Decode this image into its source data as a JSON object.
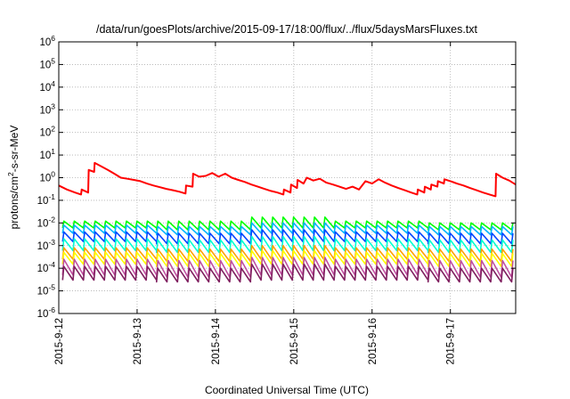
{
  "chart_data": {
    "type": "line",
    "title": "/data/run/goesPlots/archive/2015-09-17/18:00/flux/../flux/5daysMarsFluxes.txt",
    "xlabel": "Coordinated Universal Time (UTC)",
    "ylabel_parts": [
      "protons/cm",
      "2",
      "-s-sr-MeV"
    ],
    "y_scale": "log",
    "ylim": [
      1e-06,
      1000000.0
    ],
    "xlim": [
      "2015-09-12",
      "2015-09-17 20:00"
    ],
    "grid": true,
    "legend": "none",
    "x_tick_labels": [
      "2015-9-12",
      "2015-9-13",
      "2015-9-14",
      "2015-9-15",
      "2015-9-16",
      "2015-9-17"
    ],
    "y_tick_labels": [
      {
        "base": "10",
        "exp": "-6"
      },
      {
        "base": "10",
        "exp": "-5"
      },
      {
        "base": "10",
        "exp": "-4"
      },
      {
        "base": "10",
        "exp": "-3"
      },
      {
        "base": "10",
        "exp": "-2"
      },
      {
        "base": "10",
        "exp": "-1"
      },
      {
        "base": "10",
        "exp": "0"
      },
      {
        "base": "10",
        "exp": "1"
      },
      {
        "base": "10",
        "exp": "2"
      },
      {
        "base": "10",
        "exp": "3"
      },
      {
        "base": "10",
        "exp": "4"
      },
      {
        "base": "10",
        "exp": "5"
      },
      {
        "base": "10",
        "exp": "6"
      }
    ],
    "series": [
      {
        "color": "#ff0000",
        "style": "step-decay",
        "points": [
          [
            "2015-09-12 00:00",
            0.45
          ],
          [
            "2015-09-12 02:30",
            0.3
          ],
          [
            "2015-09-12 05:00",
            0.22
          ],
          [
            "2015-09-12 06:50",
            0.18
          ],
          [
            "2015-09-12 07:00",
            0.3
          ],
          [
            "2015-09-12 09:00",
            0.22
          ],
          [
            "2015-09-12 09:10",
            2.2
          ],
          [
            "2015-09-12 10:50",
            1.8
          ],
          [
            "2015-09-12 11:00",
            4.5
          ],
          [
            "2015-09-12 13:00",
            3.2
          ],
          [
            "2015-09-12 15:00",
            2.2
          ],
          [
            "2015-09-12 17:00",
            1.5
          ],
          [
            "2015-09-12 19:00",
            1.0
          ],
          [
            "2015-09-12 21:00",
            0.9
          ],
          [
            "2015-09-12 23:00",
            0.8
          ],
          [
            "2015-09-13 01:00",
            0.7
          ],
          [
            "2015-09-13 03:00",
            0.55
          ],
          [
            "2015-09-13 05:00",
            0.45
          ],
          [
            "2015-09-13 07:00",
            0.38
          ],
          [
            "2015-09-13 09:00",
            0.32
          ],
          [
            "2015-09-13 11:00",
            0.28
          ],
          [
            "2015-09-13 13:00",
            0.24
          ],
          [
            "2015-09-13 14:50",
            0.2
          ],
          [
            "2015-09-13 15:00",
            0.45
          ],
          [
            "2015-09-13 17:00",
            0.4
          ],
          [
            "2015-09-13 17:10",
            1.5
          ],
          [
            "2015-09-13 19:00",
            1.1
          ],
          [
            "2015-09-13 21:00",
            1.2
          ],
          [
            "2015-09-13 23:00",
            1.6
          ],
          [
            "2015-09-14 01:00",
            1.1
          ],
          [
            "2015-09-14 03:00",
            1.5
          ],
          [
            "2015-09-14 05:00",
            1.0
          ],
          [
            "2015-09-14 07:00",
            0.8
          ],
          [
            "2015-09-14 09:00",
            0.65
          ],
          [
            "2015-09-14 11:00",
            0.5
          ],
          [
            "2015-09-14 13:00",
            0.4
          ],
          [
            "2015-09-14 15:00",
            0.32
          ],
          [
            "2015-09-14 17:00",
            0.26
          ],
          [
            "2015-09-14 19:00",
            0.22
          ],
          [
            "2015-09-14 20:50",
            0.18
          ],
          [
            "2015-09-14 21:00",
            0.3
          ],
          [
            "2015-09-14 23:00",
            0.22
          ],
          [
            "2015-09-14 23:10",
            0.5
          ],
          [
            "2015-09-15 01:00",
            0.35
          ],
          [
            "2015-09-15 01:10",
            0.8
          ],
          [
            "2015-09-15 03:00",
            0.55
          ],
          [
            "2015-09-15 04:00",
            1.0
          ],
          [
            "2015-09-15 06:00",
            0.75
          ],
          [
            "2015-09-15 08:00",
            0.9
          ],
          [
            "2015-09-15 10:00",
            0.6
          ],
          [
            "2015-09-15 12:00",
            0.5
          ],
          [
            "2015-09-15 14:00",
            0.4
          ],
          [
            "2015-09-15 16:00",
            0.32
          ],
          [
            "2015-09-15 18:00",
            0.4
          ],
          [
            "2015-09-15 20:00",
            0.3
          ],
          [
            "2015-09-15 22:00",
            0.7
          ],
          [
            "2015-09-16 00:00",
            0.55
          ],
          [
            "2015-09-16 02:00",
            0.85
          ],
          [
            "2015-09-16 04:00",
            0.6
          ],
          [
            "2015-09-16 06:00",
            0.45
          ],
          [
            "2015-09-16 08:00",
            0.35
          ],
          [
            "2015-09-16 10:00",
            0.28
          ],
          [
            "2015-09-16 12:00",
            0.22
          ],
          [
            "2015-09-16 13:50",
            0.18
          ],
          [
            "2015-09-16 14:00",
            0.3
          ],
          [
            "2015-09-16 16:00",
            0.22
          ],
          [
            "2015-09-16 16:10",
            0.4
          ],
          [
            "2015-09-16 18:00",
            0.3
          ],
          [
            "2015-09-16 18:10",
            0.5
          ],
          [
            "2015-09-16 20:00",
            0.4
          ],
          [
            "2015-09-16 20:10",
            0.7
          ],
          [
            "2015-09-16 22:00",
            0.55
          ],
          [
            "2015-09-16 22:10",
            0.85
          ],
          [
            "2015-09-17 00:00",
            0.7
          ],
          [
            "2015-09-17 02:00",
            0.55
          ],
          [
            "2015-09-17 04:00",
            0.45
          ],
          [
            "2015-09-17 06:00",
            0.35
          ],
          [
            "2015-09-17 08:00",
            0.28
          ],
          [
            "2015-09-17 10:00",
            0.22
          ],
          [
            "2015-09-17 12:00",
            0.18
          ],
          [
            "2015-09-17 13:50",
            0.15
          ],
          [
            "2015-09-17 14:00",
            1.5
          ],
          [
            "2015-09-17 16:00",
            1.0
          ],
          [
            "2015-09-17 18:00",
            0.75
          ],
          [
            "2015-09-17 20:00",
            0.5
          ]
        ]
      },
      {
        "color": "#00ff00",
        "style": "sawtooth",
        "start": "2015-09-12 01:10",
        "period_hours": 3.2,
        "drift": "2015-09-14 20:00",
        "peaks": [
          0.012,
          0.012,
          0.018,
          0.012,
          0.01
        ],
        "troughs": [
          0.006,
          0.005,
          0.006,
          0.006,
          0.005
        ]
      },
      {
        "color": "#00b4ff",
        "style": "sawtooth",
        "start": "2015-09-12 01:10",
        "period_hours": 3.2,
        "peaks": [
          0.008,
          0.007,
          0.01,
          0.008,
          0.007
        ],
        "troughs": [
          0.0035,
          0.003,
          0.0035,
          0.0035,
          0.003
        ]
      },
      {
        "color": "#0046ff",
        "style": "sawtooth",
        "start": "2015-09-12 01:10",
        "period_hours": 3.2,
        "peaks": [
          0.004,
          0.0035,
          0.005,
          0.004,
          0.0035
        ],
        "troughs": [
          0.0015,
          0.0012,
          0.0015,
          0.0015,
          0.0012
        ]
      },
      {
        "color": "#00ffd2",
        "style": "sawtooth",
        "start": "2015-09-12 01:10",
        "period_hours": 3.2,
        "peaks": [
          0.002,
          0.0018,
          0.0025,
          0.002,
          0.0018
        ],
        "troughs": [
          0.0006,
          0.0005,
          0.0006,
          0.0006,
          0.0005
        ]
      },
      {
        "color": "#ffa000",
        "style": "sawtooth",
        "start": "2015-09-12 01:10",
        "period_hours": 3.2,
        "peaks": [
          0.0008,
          0.0007,
          0.001,
          0.0008,
          0.0007
        ],
        "troughs": [
          0.00025,
          0.0002,
          0.00025,
          0.00025,
          0.0002
        ]
      },
      {
        "color": "#ffff00",
        "style": "sawtooth",
        "start": "2015-09-12 01:10",
        "period_hours": 3.2,
        "peaks": [
          0.0005,
          0.00045,
          0.0006,
          0.0005,
          0.00045
        ],
        "troughs": [
          0.00015,
          0.00012,
          0.00015,
          0.00015,
          0.00012
        ]
      },
      {
        "color": "#c050a0",
        "style": "sawtooth",
        "start": "2015-09-12 01:10",
        "period_hours": 3.2,
        "peaks": [
          0.00025,
          0.00022,
          0.0003,
          0.00025,
          0.00022
        ],
        "troughs": [
          5e-05,
          4e-05,
          5e-05,
          5e-05,
          4e-05
        ]
      },
      {
        "color": "#802060",
        "style": "sawtooth",
        "start": "2015-09-12 01:10",
        "period_hours": 3.2,
        "peaks": [
          0.00012,
          0.0001,
          0.00015,
          0.00012,
          0.0001
        ],
        "troughs": [
          3e-05,
          2.5e-05,
          3e-05,
          3e-05,
          2.5e-05
        ]
      }
    ]
  }
}
